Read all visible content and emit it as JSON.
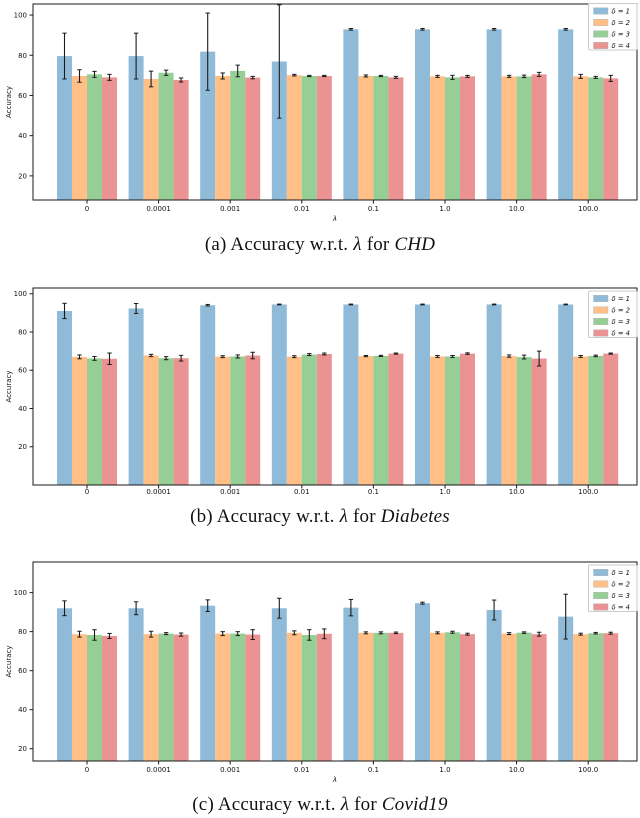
{
  "page": {
    "background": "#ffffff"
  },
  "colors": {
    "bar_delta1": "#8FBBD9",
    "bar_delta2": "#FFBF86",
    "bar_delta3": "#95CF95",
    "bar_delta4": "#EB9393",
    "error_bar": "#1a1a1a",
    "axis": "#1a1a1a",
    "text": "#111111",
    "legend_border": "#cccccc",
    "legend_background": "#ffffff"
  },
  "figures": [
    {
      "caption_prefix": "(a) Accuracy w.r.t.",
      "caption_lambda": "λ",
      "caption_mid": "for",
      "caption_dataset": "CHD"
    },
    {
      "caption_prefix": "(b) Accuracy w.r.t.",
      "caption_lambda": "λ",
      "caption_mid": "for",
      "caption_dataset": "Diabetes"
    },
    {
      "caption_prefix": "(c) Accuracy w.r.t.",
      "caption_lambda": "λ",
      "caption_mid": "for",
      "caption_dataset": "Covid19"
    }
  ],
  "chart_data": [
    {
      "type": "bar",
      "dataset": "CHD",
      "title": "",
      "xlabel": "λ",
      "ylabel": "Accuracy",
      "categories": [
        "0",
        "0.0001",
        "0.001",
        "0.01",
        "0.1",
        "1.0",
        "10.0",
        "100.0"
      ],
      "yticks": [
        20,
        40,
        60,
        80,
        100
      ],
      "ylim": [
        8,
        105.5
      ],
      "grid": false,
      "legend_position": "upper right",
      "series": [
        {
          "name": "δ = 1",
          "color": "#8FBBD9",
          "values": [
            79.6,
            79.6,
            81.8,
            76.9,
            92.9,
            92.9,
            92.9,
            92.9
          ],
          "errors": [
            11.4,
            11.4,
            19.2,
            28.2,
            0.4,
            0.4,
            0.4,
            0.4
          ]
        },
        {
          "name": "δ = 2",
          "color": "#FFBF86",
          "values": [
            69.7,
            68.2,
            69.7,
            70.1,
            69.7,
            69.5,
            69.5,
            69.5
          ],
          "errors": [
            3.1,
            3.9,
            1.5,
            0.4,
            0.5,
            0.5,
            0.5,
            1.0
          ]
        },
        {
          "name": "δ = 3",
          "color": "#95CF95",
          "values": [
            70.5,
            71.3,
            72.2,
            69.7,
            69.7,
            69.0,
            69.5,
            69.0
          ],
          "errors": [
            1.5,
            1.3,
            2.9,
            0.3,
            0.3,
            1.0,
            0.6,
            0.5
          ]
        },
        {
          "name": "δ = 4",
          "color": "#EB9393",
          "values": [
            69.0,
            67.7,
            68.9,
            69.7,
            69.0,
            69.5,
            70.5,
            68.5
          ],
          "errors": [
            1.5,
            1.0,
            0.6,
            0.3,
            0.5,
            0.5,
            1.0,
            1.5
          ]
        }
      ]
    },
    {
      "type": "bar",
      "dataset": "Diabetes",
      "title": "",
      "xlabel": "",
      "ylabel": "Accuracy",
      "categories": [
        "0",
        "0.0001",
        "0.001",
        "0.01",
        "0.1",
        "1.0",
        "10.0",
        "100.0"
      ],
      "yticks": [
        20,
        40,
        60,
        80,
        100
      ],
      "ylim": [
        0,
        103
      ],
      "grid": false,
      "legend_position": "upper right",
      "series": [
        {
          "name": "δ = 1",
          "color": "#8FBBD9",
          "values": [
            91.0,
            92.3,
            94.0,
            94.4,
            94.4,
            94.4,
            94.4,
            94.4
          ],
          "errors": [
            4.0,
            2.6,
            0.4,
            0.2,
            0.2,
            0.2,
            0.2,
            0.2
          ]
        },
        {
          "name": "δ = 2",
          "color": "#FFBF86",
          "values": [
            67.0,
            67.7,
            67.1,
            67.1,
            67.4,
            67.2,
            67.4,
            67.2
          ],
          "errors": [
            1.0,
            0.6,
            0.5,
            0.5,
            0.3,
            0.5,
            0.6,
            0.5
          ]
        },
        {
          "name": "δ = 3",
          "color": "#95CF95",
          "values": [
            66.2,
            66.3,
            67.2,
            68.2,
            67.5,
            67.2,
            66.9,
            67.5
          ],
          "errors": [
            1.0,
            0.8,
            0.8,
            0.5,
            0.3,
            0.5,
            1.0,
            0.4
          ]
        },
        {
          "name": "δ = 4",
          "color": "#EB9393",
          "values": [
            66.0,
            66.3,
            67.7,
            68.5,
            68.7,
            68.7,
            66.1,
            68.7
          ],
          "errors": [
            3.0,
            1.5,
            1.7,
            0.5,
            0.3,
            0.4,
            3.9,
            0.3
          ]
        }
      ]
    },
    {
      "type": "bar",
      "dataset": "Covid19",
      "title": "",
      "xlabel": "λ",
      "ylabel": "Accuracy",
      "categories": [
        "0",
        "0.0001",
        "0.001",
        "0.01",
        "0.1",
        "1.0",
        "10.0",
        "100.0"
      ],
      "yticks": [
        20,
        40,
        60,
        80,
        100
      ],
      "ylim": [
        13.7,
        115.7
      ],
      "grid": false,
      "legend_position": "upper right",
      "series": [
        {
          "name": "δ = 1",
          "color": "#8FBBD9",
          "values": [
            92.0,
            92.0,
            93.3,
            92.0,
            92.3,
            94.6,
            91.1,
            87.7
          ],
          "errors": [
            3.8,
            3.3,
            3.0,
            5.1,
            4.2,
            0.5,
            5.1,
            11.5
          ]
        },
        {
          "name": "δ = 2",
          "color": "#FFBF86",
          "values": [
            78.7,
            78.7,
            79.0,
            79.4,
            79.4,
            79.4,
            79.0,
            78.7
          ],
          "errors": [
            1.5,
            1.5,
            1.0,
            1.0,
            0.5,
            0.5,
            0.5,
            0.5
          ]
        },
        {
          "name": "δ = 3",
          "color": "#95CF95",
          "values": [
            78.3,
            79.0,
            79.0,
            78.3,
            79.4,
            79.7,
            79.5,
            79.2
          ],
          "errors": [
            2.7,
            0.5,
            1.0,
            2.7,
            0.5,
            0.5,
            0.4,
            0.4
          ]
        },
        {
          "name": "δ = 4",
          "color": "#EB9393",
          "values": [
            77.8,
            78.5,
            78.5,
            78.9,
            79.4,
            78.7,
            78.7,
            79.2
          ],
          "errors": [
            1.3,
            0.8,
            2.5,
            2.5,
            0.4,
            0.5,
            1.0,
            0.5
          ]
        }
      ]
    }
  ]
}
